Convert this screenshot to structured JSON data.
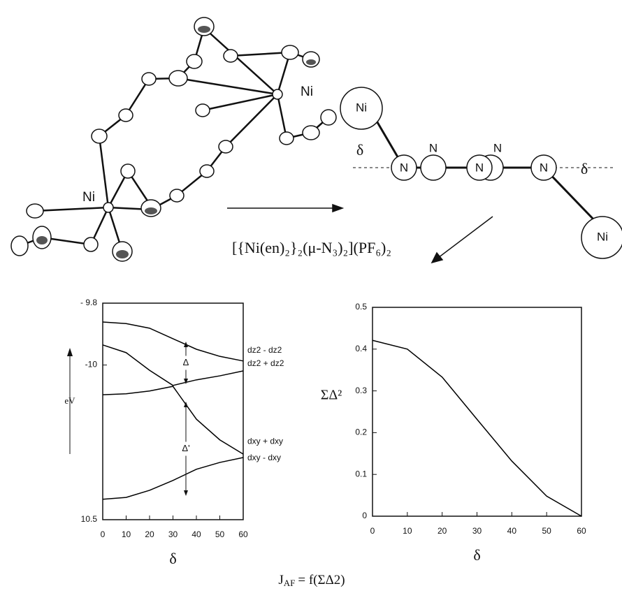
{
  "structure": {
    "ni_labels": [
      "Ni",
      "Ni"
    ]
  },
  "scheme": {
    "ni_labels": [
      "Ni",
      "Ni"
    ],
    "n_labels": [
      "N",
      "N",
      "N",
      "N",
      "N"
    ],
    "delta_labels": [
      "δ",
      "δ"
    ]
  },
  "formula": "[{Ni(en)₂}₂(μ-N₃)₂](PF₆)₂",
  "chart_data": [
    {
      "type": "line",
      "y_label": "eV",
      "x_label": "δ",
      "x": [
        0,
        10,
        20,
        30,
        40,
        50,
        60
      ],
      "xlim": [
        0,
        60
      ],
      "xticks": [
        0,
        10,
        20,
        30,
        40,
        50,
        60
      ],
      "ylim": [
        -10.5,
        -9.8
      ],
      "yticks": [
        {
          "value": -9.8,
          "label": "- 9.8"
        },
        -10,
        {
          "value": -10.5,
          "label": "10.5"
        }
      ],
      "series": [
        {
          "name": "dz2 - dz2",
          "color": "#000000",
          "values": [
            -9.861,
            -9.866,
            -9.881,
            -9.915,
            -9.949,
            -9.972,
            -9.987
          ]
        },
        {
          "name": "dz2 + dz2",
          "color": "#000000",
          "values": [
            -9.935,
            -9.96,
            -10.017,
            -10.066,
            -10.048,
            -10.035,
            -10.019
          ]
        },
        {
          "name": "dxy + dxy",
          "color": "#000000",
          "values": [
            -10.096,
            -10.093,
            -10.084,
            -10.069,
            -10.175,
            -10.242,
            -10.288
          ]
        },
        {
          "name": "dxy - dxy",
          "color": "#000000",
          "values": [
            -10.434,
            -10.428,
            -10.405,
            -10.373,
            -10.337,
            -10.315,
            -10.299
          ]
        }
      ],
      "annotations": [
        "Δ",
        "Δ'"
      ]
    },
    {
      "type": "line",
      "y_label": "ΣΔ²",
      "x_label": "δ",
      "x": [
        0,
        10,
        20,
        30,
        40,
        50,
        60
      ],
      "xlim": [
        0,
        60
      ],
      "xticks": [
        0,
        10,
        20,
        30,
        40,
        50,
        60
      ],
      "ylim": [
        0,
        0.5
      ],
      "yticks": [
        0,
        0.1,
        0.2,
        0.3,
        0.4,
        0.5
      ],
      "series": [
        {
          "color": "#000000",
          "values": [
            0.421,
            0.4,
            0.333,
            0.232,
            0.132,
            0.048,
            0
          ]
        }
      ]
    }
  ],
  "equation": {
    "lhs": "J",
    "lhs_sub": "AF",
    "rhs": "= f(ΣΔ2)"
  }
}
